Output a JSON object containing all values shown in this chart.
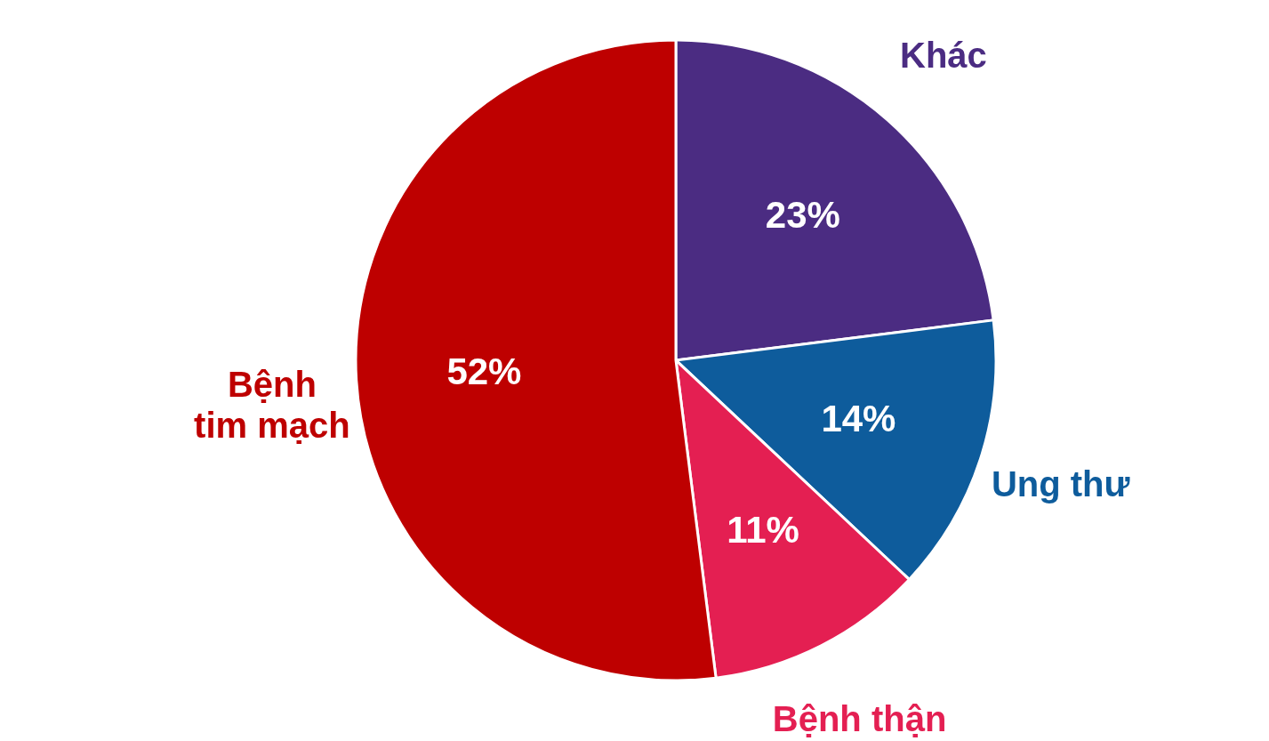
{
  "chart_data": {
    "type": "pie",
    "categories": [
      "Khác",
      "Ung thư",
      "Bệnh thận",
      "Bệnh tim mạch"
    ],
    "values": [
      23,
      14,
      11,
      52
    ],
    "colors": [
      "#4b2c82",
      "#0e5c9c",
      "#e41f52",
      "#be0000"
    ],
    "value_labels": [
      "23%",
      "14%",
      "11%",
      "52%"
    ]
  }
}
